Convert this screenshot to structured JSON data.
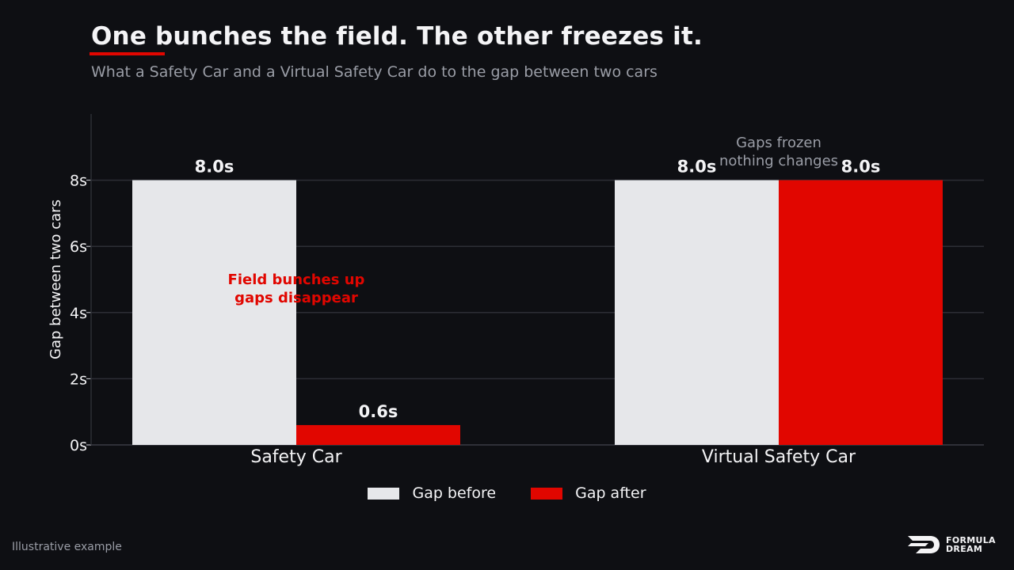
{
  "header": {
    "title": "One bunches the field. The other freezes it.",
    "subtitle": "What a Safety Car and a Virtual Safety Car do to the gap between two cars"
  },
  "footer": {
    "note": "Illustrative example",
    "brand_line1": "FORMULA",
    "brand_line2": "DREAM"
  },
  "colors": {
    "background": "#0e0f13",
    "before": "#e6e7ea",
    "after": "#e10600",
    "annotation_muted": "#9a9da6"
  },
  "chart_data": {
    "type": "bar",
    "categories": [
      "Safety Car",
      "Virtual Safety Car"
    ],
    "series": [
      {
        "name": "Gap before",
        "values": [
          8.0,
          8.0
        ],
        "labels": [
          "8.0s",
          "8.0s"
        ]
      },
      {
        "name": "Gap after",
        "values": [
          0.6,
          8.0
        ],
        "labels": [
          "0.6s",
          "8.0s"
        ]
      }
    ],
    "ylabel": "Gap between two cars",
    "ylim": [
      0,
      10
    ],
    "yticks": [
      0,
      2,
      4,
      6,
      8
    ],
    "ytick_labels": [
      "0s",
      "2s",
      "4s",
      "6s",
      "8s"
    ],
    "grid": true,
    "legend_position": "bottom-center",
    "annotations": [
      {
        "category": "Safety Car",
        "lines": [
          "Field bunches up",
          "gaps disappear"
        ],
        "style": "red"
      },
      {
        "category": "Virtual Safety Car",
        "lines": [
          "Gaps frozen",
          "nothing changes"
        ],
        "style": "muted"
      }
    ]
  }
}
